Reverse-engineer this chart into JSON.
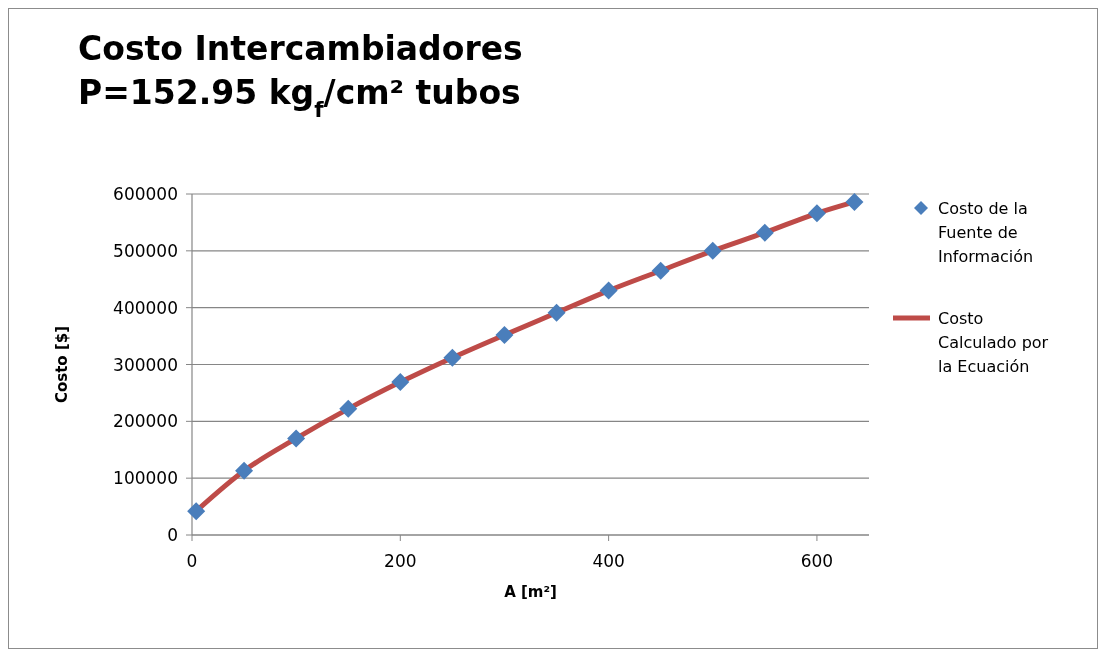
{
  "chart_data": {
    "type": "scatter",
    "title": "Costo Intercambiadores\nP=152.95 kg$_{f}$/cm² tubos",
    "xlabel": "A [m²]",
    "ylabel": "Costo [$]",
    "xlim": [
      0,
      650
    ],
    "xticks": [
      0,
      200,
      400,
      600
    ],
    "ylim": [
      0,
      600000
    ],
    "yticks": [
      0,
      100000,
      200000,
      300000,
      400000,
      500000,
      600000
    ],
    "grid": "y",
    "legend": "right",
    "series": [
      {
        "name": "Costo de la Fuente de Información",
        "marker": "diamond",
        "color": "#4a7ebb",
        "x": [
          4,
          50,
          100,
          150,
          200,
          250,
          300,
          350,
          400,
          450,
          500,
          550,
          600,
          636
        ],
        "values": [
          42000,
          113000,
          170000,
          222000,
          269000,
          312000,
          352000,
          391000,
          430000,
          465000,
          500000,
          532000,
          566000,
          586000
        ]
      },
      {
        "name": "Costo Calculado por la Ecuación",
        "type": "line",
        "line_style": "solid",
        "color": "#be4b48",
        "x": [
          4,
          50,
          100,
          150,
          200,
          250,
          300,
          350,
          400,
          450,
          500,
          550,
          600,
          636
        ],
        "values": [
          42000,
          113000,
          170000,
          222000,
          269000,
          312000,
          352000,
          391000,
          430000,
          465000,
          500000,
          532000,
          566000,
          586000
        ]
      }
    ]
  }
}
